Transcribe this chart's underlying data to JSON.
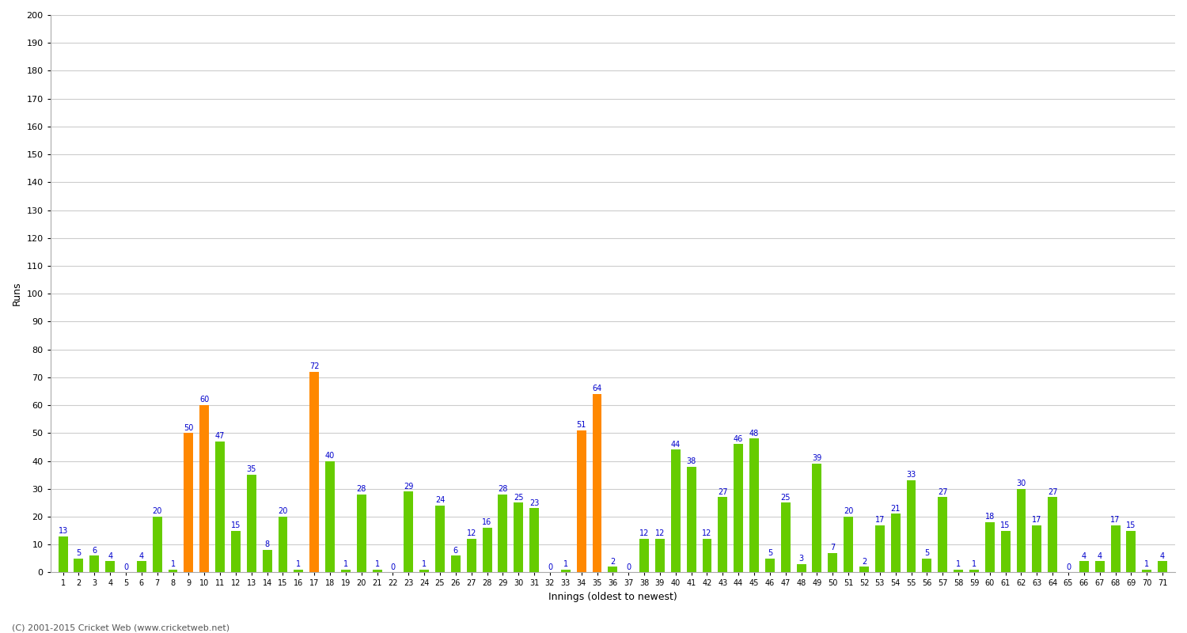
{
  "title": "",
  "xlabel": "Innings (oldest to newest)",
  "ylabel": "Runs",
  "ylim": [
    0,
    200
  ],
  "yticks": [
    0,
    10,
    20,
    30,
    40,
    50,
    60,
    70,
    80,
    90,
    100,
    110,
    120,
    130,
    140,
    150,
    160,
    170,
    180,
    190,
    200
  ],
  "background_color": "#ffffff",
  "grid_color": "#cccccc",
  "values": [
    13,
    5,
    6,
    4,
    0,
    4,
    20,
    1,
    50,
    60,
    47,
    15,
    35,
    8,
    20,
    1,
    72,
    40,
    1,
    28,
    1,
    0,
    29,
    1,
    24,
    6,
    12,
    16,
    28,
    25,
    23,
    0,
    1,
    51,
    64,
    2,
    0,
    12,
    12,
    44,
    38,
    12,
    27,
    46,
    48,
    5,
    25,
    3,
    39,
    7,
    20,
    2,
    17,
    21,
    33,
    5,
    27,
    1,
    1,
    18,
    15,
    30,
    17,
    27,
    0,
    4,
    4,
    17,
    15,
    1,
    4
  ],
  "is_orange": [
    false,
    false,
    false,
    false,
    false,
    false,
    false,
    false,
    true,
    true,
    false,
    false,
    false,
    false,
    false,
    false,
    true,
    false,
    false,
    false,
    false,
    false,
    false,
    false,
    false,
    false,
    false,
    false,
    false,
    false,
    false,
    false,
    false,
    true,
    true,
    false,
    false,
    false,
    false,
    false,
    false,
    false,
    false,
    false,
    false,
    false,
    false,
    false,
    false,
    false,
    false,
    false,
    false,
    false,
    false,
    false,
    false,
    false,
    false,
    false,
    false,
    false,
    false,
    false,
    false,
    false,
    false,
    false,
    false,
    false,
    false
  ],
  "bar_color_green": "#66cc00",
  "bar_color_orange": "#ff8800",
  "label_color": "#0000cc",
  "label_fontsize": 7,
  "axis_label_fontsize": 9,
  "tick_fontsize": 8,
  "xtick_fontsize": 7,
  "footer": "(C) 2001-2015 Cricket Web (www.cricketweb.net)",
  "footer_fontsize": 8,
  "bar_width": 0.6
}
